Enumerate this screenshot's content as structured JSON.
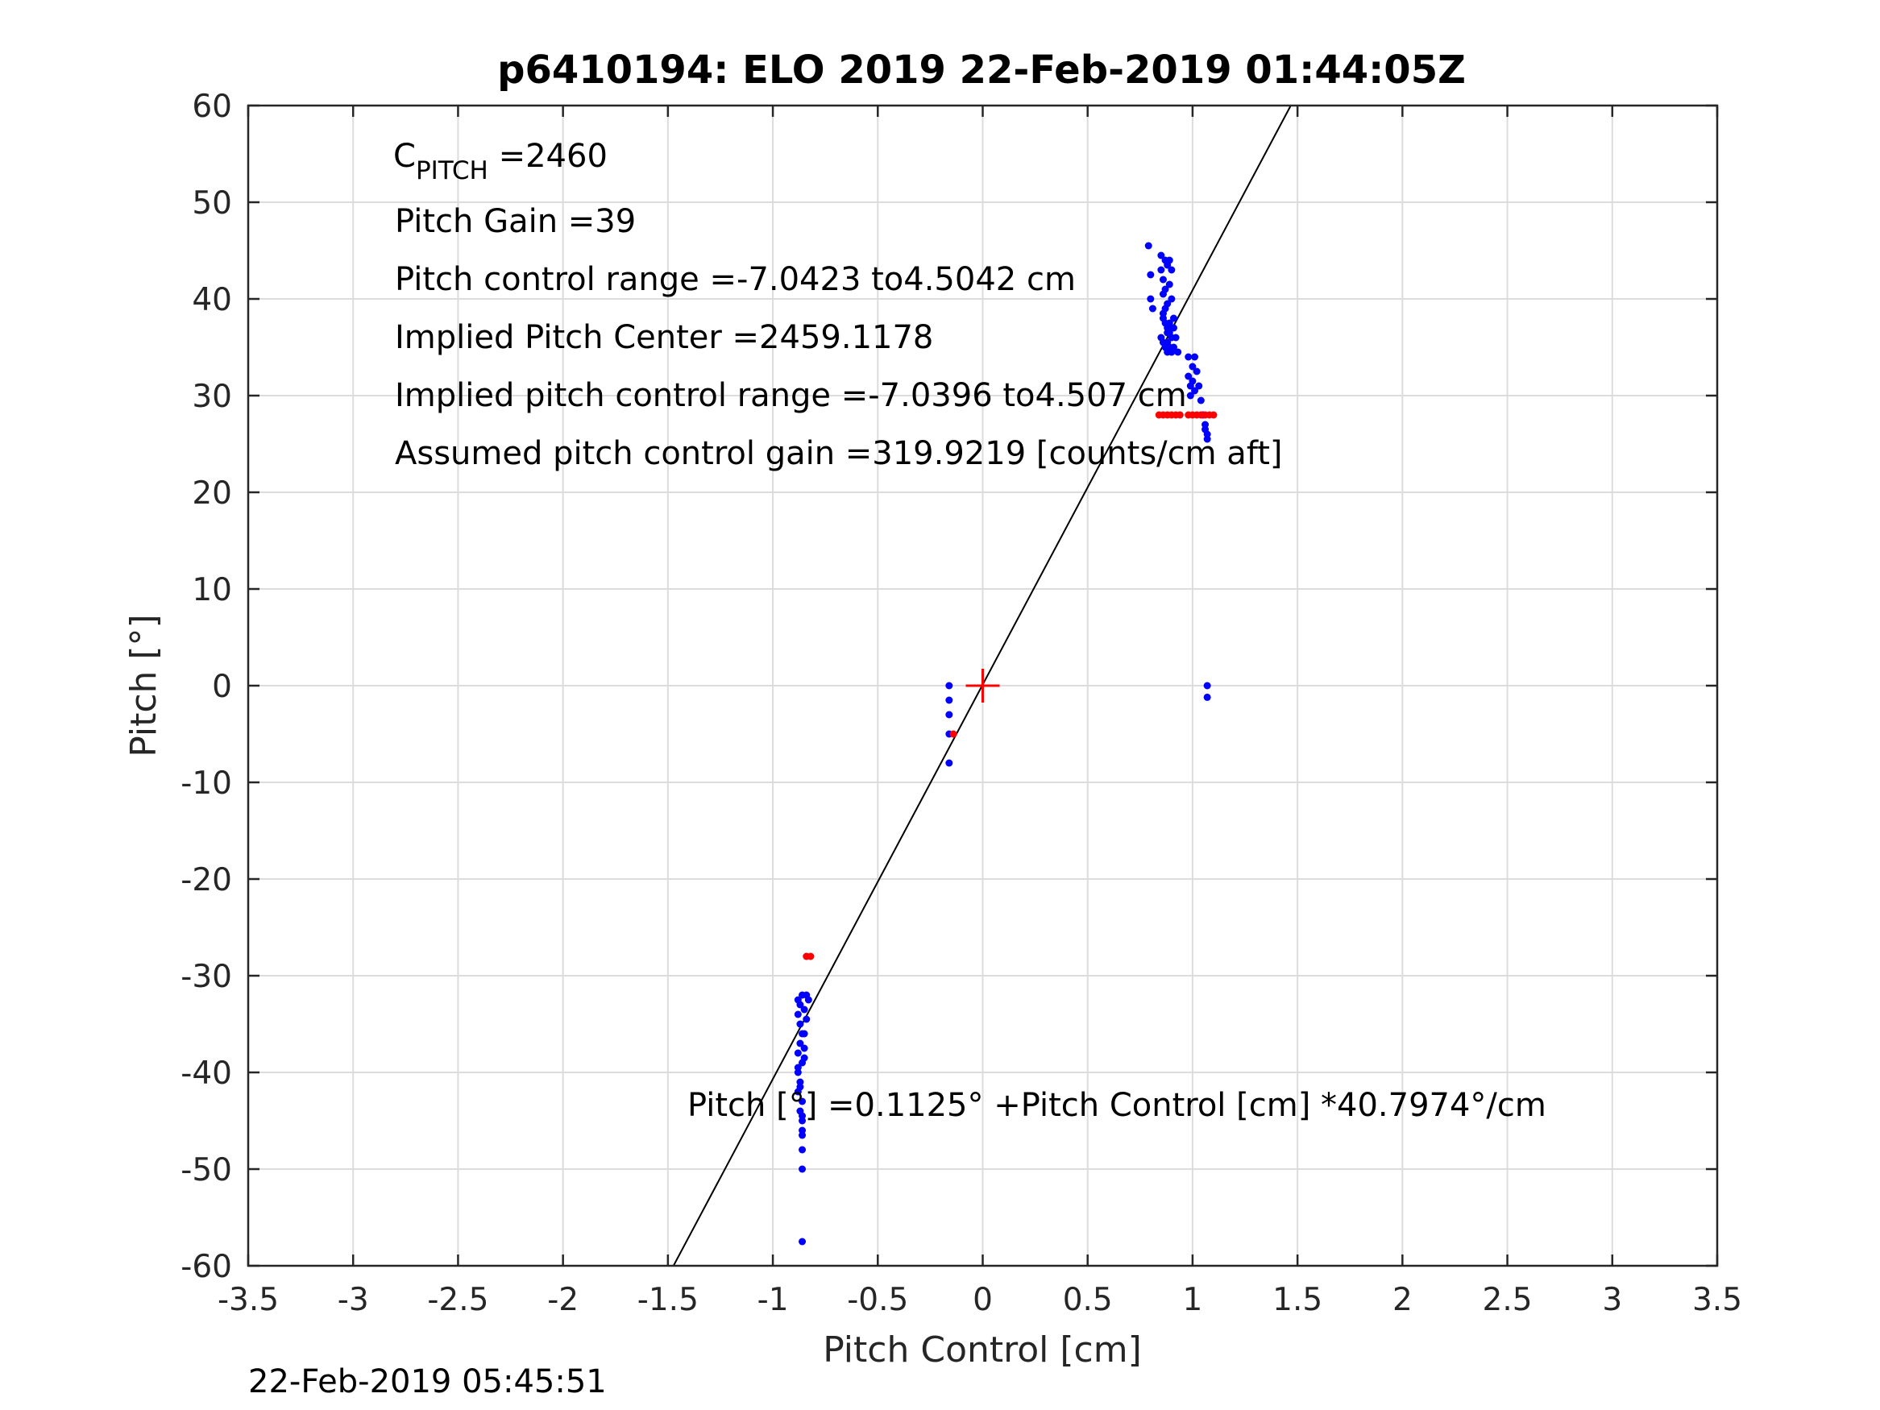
{
  "chart_data": {
    "type": "scatter",
    "title": "p6410194: ELO 2019 22-Feb-2019 01:44:05Z",
    "xlabel": "Pitch Control [cm]",
    "ylabel": "Pitch [°]",
    "xlim": [
      -3.5,
      3.5
    ],
    "ylim": [
      -60,
      60
    ],
    "xticks": [
      -3.5,
      -3,
      -2.5,
      -2,
      -1.5,
      -1,
      -0.5,
      0,
      0.5,
      1,
      1.5,
      2,
      2.5,
      3,
      3.5
    ],
    "xtick_labels": [
      "-3.5",
      "-3",
      "-2.5",
      "-2",
      "-1.5",
      "-1",
      "-0.5",
      "0",
      "0.5",
      "1",
      "1.5",
      "2",
      "2.5",
      "3",
      "3.5"
    ],
    "yticks": [
      -60,
      -50,
      -40,
      -30,
      -20,
      -10,
      0,
      10,
      20,
      30,
      40,
      50,
      60
    ],
    "ytick_labels": [
      "-60",
      "-50",
      "-40",
      "-30",
      "-20",
      "-10",
      "0",
      "10",
      "20",
      "30",
      "40",
      "50",
      "60"
    ],
    "grid": true,
    "colors": {
      "blue_points": "#0000ff",
      "red_points": "#ff0000",
      "fit_line": "#000000",
      "center_marker": "#ff0000"
    },
    "fit_line": {
      "intercept": 0.1125,
      "slope": 40.7974
    },
    "center_marker": {
      "x": 0,
      "y": 0,
      "marker": "+"
    },
    "series": [
      {
        "color": "blue",
        "x": [
          0.79,
          0.8,
          0.8,
          0.81,
          0.85,
          0.85,
          0.86,
          0.86,
          0.87,
          0.87,
          0.88,
          0.88,
          0.89,
          0.89,
          0.9,
          0.9,
          0.86,
          0.87,
          0.88,
          0.89,
          0.85,
          0.86,
          0.87,
          0.88,
          0.89,
          0.9,
          0.91,
          0.86,
          0.87,
          0.88,
          0.89,
          0.9,
          0.91,
          0.92,
          0.88,
          0.89,
          0.9,
          0.91,
          0.93,
          0.98,
          0.98,
          0.99,
          0.99,
          1.0,
          1.0,
          1.01,
          1.01,
          1.02,
          1.03,
          1.04,
          1.05,
          1.06,
          1.06,
          1.07,
          1.07,
          -0.16,
          -0.16,
          -0.16,
          -0.16,
          -0.16,
          -0.88,
          -0.88,
          -0.87,
          -0.87,
          -0.86,
          -0.86,
          -0.85,
          -0.84,
          -0.83,
          -0.88,
          -0.87,
          -0.86,
          -0.85,
          -0.84,
          -0.88,
          -0.87,
          -0.86,
          -0.85,
          -0.88,
          -0.87,
          -0.86,
          -0.85,
          -0.88,
          -0.87,
          -0.86,
          -0.86,
          -0.86,
          -0.86,
          -0.86,
          -0.86
        ],
        "y": [
          45.5,
          42.5,
          40.0,
          39.0,
          44.5,
          43.0,
          42.0,
          40.5,
          44.0,
          41.0,
          43.5,
          39.5,
          44.0,
          41.5,
          43.0,
          40.0,
          38.0,
          37.5,
          37.0,
          36.5,
          36.0,
          35.5,
          35.0,
          34.5,
          37.5,
          36.0,
          38.0,
          38.5,
          39.0,
          36.5,
          35.0,
          34.5,
          37.0,
          36.0,
          35.5,
          35.0,
          34.5,
          35.0,
          34.5,
          34.0,
          32.0,
          31.0,
          30.0,
          33.0,
          31.5,
          34.0,
          30.5,
          32.5,
          31.0,
          29.5,
          28.0,
          27.0,
          26.5,
          26.0,
          25.5,
          0.0,
          -1.5,
          -3.0,
          -5.0,
          -8.0,
          -32.5,
          -34.0,
          -33.0,
          -35.0,
          -32.0,
          -36.0,
          -33.5,
          -32.0,
          -32.5,
          -38.0,
          -37.0,
          -39.0,
          -36.0,
          -34.5,
          -40.0,
          -41.5,
          -43.0,
          -38.5,
          -42.0,
          -44.0,
          -45.0,
          -37.5,
          -39.5,
          -41.0,
          -46.0,
          -46.5,
          -48.0,
          -44.5,
          -50.0,
          -57.5
        ]
      },
      {
        "color": "red",
        "x": [
          0.84,
          0.86,
          0.88,
          0.9,
          0.92,
          0.94,
          0.98,
          1.0,
          1.02,
          1.04,
          1.06,
          1.08,
          1.1,
          -0.84,
          -0.82,
          -0.14
        ],
        "y": [
          28.0,
          28.0,
          28.0,
          28.0,
          28.0,
          28.0,
          28.0,
          28.0,
          28.0,
          28.0,
          28.0,
          28.0,
          28.0,
          -28.0,
          -28.0,
          -5.0
        ]
      },
      {
        "color": "blue",
        "x": [
          1.07,
          1.07
        ],
        "y": [
          0.0,
          -1.2
        ]
      }
    ]
  },
  "annotations": {
    "cpitch_main": "C",
    "cpitch_sub": "PITCH",
    "cpitch_value": " =2460",
    "pitch_gain": "Pitch Gain =39",
    "control_range": "Pitch control range =-7.0423 to4.5042 cm",
    "implied_center": "Implied Pitch Center =2459.1178",
    "implied_range": "Implied pitch control range =-7.0396 to4.507 cm",
    "assumed_gain": "Assumed pitch control gain =319.9219 [counts/cm aft]",
    "fit_equation": "Pitch [°] =0.1125° +Pitch Control [cm] *40.7974°/cm"
  },
  "footer": "22-Feb-2019 05:45:51"
}
